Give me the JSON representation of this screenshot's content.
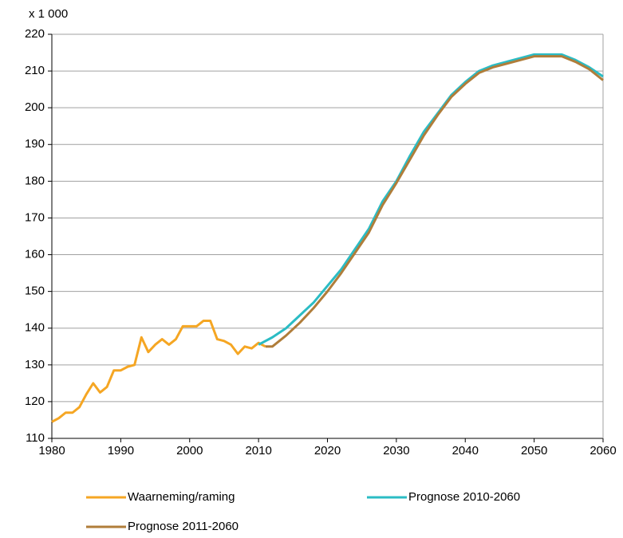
{
  "chart_data": {
    "type": "line",
    "y_unit_label": "x 1 000",
    "xlim": [
      1980,
      2060
    ],
    "xticks": [
      1980,
      1990,
      2000,
      2010,
      2020,
      2030,
      2040,
      2050,
      2060
    ],
    "ylim": [
      110,
      220
    ],
    "yticks": [
      110,
      120,
      130,
      140,
      150,
      160,
      170,
      180,
      190,
      200,
      210,
      220
    ],
    "grid": true,
    "series": [
      {
        "name": "Waarneming/raming",
        "color": "#f5a623",
        "x": [
          1980,
          1981,
          1982,
          1983,
          1984,
          1985,
          1986,
          1987,
          1988,
          1989,
          1990,
          1991,
          1992,
          1993,
          1994,
          1995,
          1996,
          1997,
          1998,
          1999,
          2000,
          2001,
          2002,
          2003,
          2004,
          2005,
          2006,
          2007,
          2008,
          2009,
          2010,
          2011
        ],
        "values": [
          114.5,
          115.5,
          117,
          117,
          118.5,
          122,
          125,
          122.5,
          124,
          128.5,
          128.5,
          129.5,
          130,
          137.5,
          133.5,
          135.5,
          137,
          135.5,
          137,
          140.5,
          140.5,
          140.5,
          142,
          142,
          137,
          136.5,
          135.5,
          133,
          135,
          134.5,
          136,
          135
        ]
      },
      {
        "name": "Prognose 2010-2060",
        "color": "#2bbcc4",
        "x": [
          2010,
          2012,
          2014,
          2016,
          2018,
          2020,
          2022,
          2024,
          2026,
          2028,
          2030,
          2032,
          2034,
          2036,
          2038,
          2040,
          2042,
          2044,
          2046,
          2048,
          2050,
          2052,
          2054,
          2056,
          2058,
          2060
        ],
        "values": [
          135.5,
          137.5,
          140,
          143.5,
          147,
          151.5,
          156,
          161.5,
          167,
          174.5,
          180,
          187,
          193.5,
          198.5,
          203.5,
          207,
          210,
          211.5,
          212.5,
          213.5,
          214.5,
          214.5,
          214.5,
          213,
          211,
          208.5
        ]
      },
      {
        "name": "Prognose 2011-2060",
        "color": "#b07d3a",
        "x": [
          2011,
          2012,
          2014,
          2016,
          2018,
          2020,
          2022,
          2024,
          2026,
          2028,
          2030,
          2032,
          2034,
          2036,
          2038,
          2040,
          2042,
          2044,
          2046,
          2048,
          2050,
          2052,
          2054,
          2056,
          2058,
          2060
        ],
        "values": [
          135,
          135,
          138,
          141.5,
          145.5,
          150,
          155,
          160.5,
          166,
          173.5,
          179.5,
          186,
          192.5,
          198,
          203,
          206.5,
          209.5,
          211,
          212,
          213,
          214,
          214,
          214,
          212.5,
          210.5,
          207.5
        ]
      }
    ]
  }
}
